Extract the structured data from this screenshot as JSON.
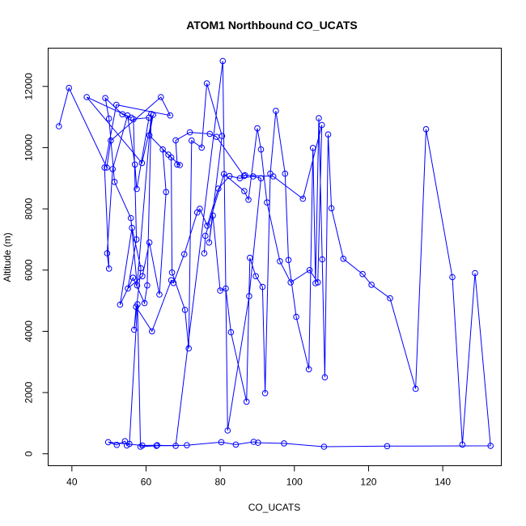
{
  "chart_data": {
    "type": "scatter",
    "title": "ATOM1 Northbound CO_UCATS",
    "xlabel": "CO_UCATS",
    "ylabel": "Altitude (m)",
    "xlim": [
      33.6,
      155.8
    ],
    "ylim": [
      -390,
      13250
    ],
    "xticks": [
      40,
      60,
      80,
      100,
      120,
      140
    ],
    "yticks": [
      0,
      2000,
      4000,
      6000,
      8000,
      10000,
      12000
    ],
    "grid": false,
    "legend": "none",
    "color": "#0000ff",
    "series": [
      {
        "x": [
          36.5,
          39.2,
          49.4,
          50.5,
          64.0,
          66.5,
          52.0,
          48.8,
          50.0,
          49.5,
          51.0,
          55.0,
          57.0,
          57.5,
          60.8,
          56.6,
          57.4,
          55.1,
          59.0,
          60.9,
          63.6,
          65.4,
          64.5,
          66.8,
          67.0,
          70.5,
          71.5,
          72.3,
          75.0,
          76.4,
          80.5,
          77.0,
          78.0,
          80.0,
          81.5,
          82.9,
          87.1,
          88.0,
          89.6,
          91.4,
          92.1,
          93.5,
          95.0,
          97.5,
          98.4,
          100.5,
          103.9,
          105.0,
          105.7,
          106.6,
          107.5,
          108.2,
          109.1,
          110.0,
          113.2,
          118.4,
          120.8,
          125.8,
          132.7,
          135.5,
          142.6,
          145.3,
          148.7,
          152.9,
          125.0,
          108.0,
          97.2,
          90.2,
          89.0,
          84.2,
          80.3,
          71.0,
          62.8,
          58.5,
          57.7,
          55.5,
          54.8,
          54.3,
          52.1,
          49.8,
          59.0,
          63.0,
          68.0,
          80.7,
          82.0,
          87.8,
          91.0,
          88.9,
          85.3,
          82.5,
          79.5,
          76.5,
          74.5,
          73.8,
          70.3,
          67.4,
          66.8,
          61.6,
          57.3,
          56.8,
          58.6,
          56.2,
          53.0,
          56.5,
          59.6,
          60.3,
          61.4,
          57.6,
          55.9,
          51.5,
          50.0,
          49.0,
          53.6,
          56.0,
          44.0,
          58.9,
          61.9,
          60.9,
          66.0,
          69.1,
          68.4,
          68.0,
          71.8,
          77.2,
          79.0,
          86.4,
          86.7,
          94.3,
          102.3,
          107.4,
          106.3,
          104.1,
          99.0,
          96.1,
          92.6,
          91.0,
          90.0,
          87.6,
          86.5,
          81.0,
          76.0,
          75.7
        ],
        "y": [
          10700,
          11950,
          9350,
          10230,
          11650,
          11050,
          11400,
          9350,
          6050,
          6550,
          9300,
          11050,
          9450,
          8650,
          10980,
          10930,
          7000,
          5400,
          5800,
          6900,
          5200,
          8550,
          9940,
          9680,
          5920,
          4700,
          3440,
          10230,
          10000,
          12100,
          10380,
          6900,
          7780,
          5330,
          5400,
          3970,
          1700,
          6400,
          5800,
          5450,
          1980,
          9150,
          11200,
          9150,
          6330,
          4470,
          2760,
          9990,
          5570,
          10960,
          6350,
          2500,
          10430,
          8020,
          6370,
          5870,
          5520,
          5080,
          2120,
          10600,
          5770,
          300,
          5900,
          260,
          250,
          230,
          340,
          360,
          390,
          300,
          380,
          280,
          260,
          230,
          4880,
          320,
          270,
          410,
          290,
          380,
          270,
          280,
          260,
          12830,
          760,
          5150,
          9000,
          9060,
          9000,
          9070,
          8660,
          7450,
          8000,
          7880,
          6520,
          5580,
          5670,
          4000,
          4800,
          4050,
          6060,
          7380,
          4870,
          5750,
          4920,
          5500,
          11100,
          5500,
          7700,
          8880,
          10950,
          11620,
          11090,
          10980,
          11650,
          9500,
          11070,
          10400,
          9770,
          9430,
          9450,
          10240,
          10500,
          10450,
          10350,
          9070,
          9100,
          9060,
          8330,
          10740,
          5600,
          6000,
          5600,
          6290,
          8210,
          9940,
          10630,
          8300,
          8580,
          9140,
          7120,
          6550
        ]
      }
    ]
  }
}
